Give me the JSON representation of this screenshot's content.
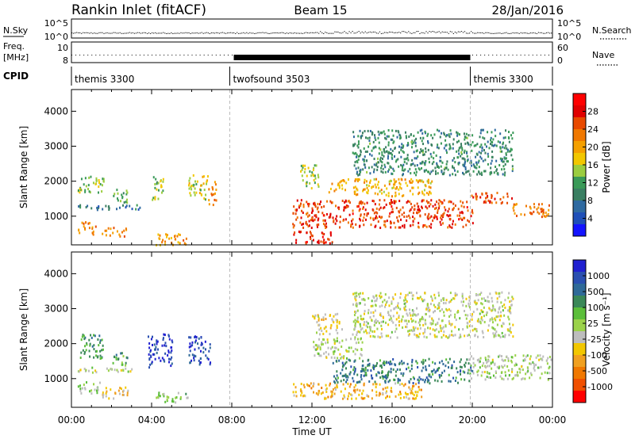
{
  "header": {
    "title": "Rankin Inlet (fitACF)",
    "beam": "Beam 15",
    "date": "28/Jan/2016"
  },
  "strip": {
    "nsky_label": "N.Sky",
    "nsearch_label": "N.Search",
    "nsky_ticks": [
      "10^5",
      "10^0"
    ],
    "nsearch_ticks": [
      "10^5",
      "10^0"
    ],
    "freq_label_1": "Freq.",
    "freq_label_2": "[MHz]",
    "freq_ticks": [
      "10",
      "8"
    ],
    "nave_label": "Nave",
    "nave_ticks": [
      "60",
      "0"
    ],
    "cpid_label": "CPID",
    "cpid_segments": [
      {
        "label": "themis 3300",
        "start_hour": 0,
        "end_hour": 7.9
      },
      {
        "label": "twofsound 3503",
        "start_hour": 7.9,
        "end_hour": 19.9
      },
      {
        "label": "themis 3300",
        "start_hour": 19.9,
        "end_hour": 24
      }
    ]
  },
  "axes": {
    "ylabel": "Slant Range [km]",
    "yticks": [
      1000,
      2000,
      3000,
      4000
    ],
    "ylim": [
      180,
      4620
    ],
    "xlabel": "Time UT",
    "xticks": [
      "00:00",
      "04:00",
      "08:00",
      "12:00",
      "16:00",
      "20:00",
      "00:00"
    ],
    "xlim_hours": [
      0,
      24
    ]
  },
  "colors": {
    "grey_scatter": "#bdbdbd",
    "gap_line": "#bbbbbb"
  },
  "chart_data": [
    {
      "type": "heatmap",
      "name": "power",
      "title": "Power [dB]",
      "xlabel": "Time UT",
      "ylabel": "Slant Range [km]",
      "colorbar_ticks": [
        "4",
        "8",
        "12",
        "16",
        "20",
        "24",
        "28"
      ],
      "colormap": [
        "#1414ff",
        "#1f4fb8",
        "#2f6aa0",
        "#3a7f62",
        "#3a9a58",
        "#9bcd40",
        "#f2c700",
        "#f5a000",
        "#f07800",
        "#e84a00",
        "#e00000",
        "#ff0000"
      ],
      "clusters": [
        {
          "t0": 0.3,
          "t1": 1.6,
          "r0": 1700,
          "r1": 2200,
          "value": 14
        },
        {
          "t0": 0.3,
          "t1": 3.5,
          "r0": 1200,
          "r1": 1350,
          "value": 8
        },
        {
          "t0": 0.3,
          "t1": 1.2,
          "r0": 500,
          "r1": 900,
          "value": 22
        },
        {
          "t0": 1.5,
          "t1": 2.7,
          "r0": 450,
          "r1": 700,
          "value": 21
        },
        {
          "t0": 2.0,
          "t1": 2.8,
          "r0": 1400,
          "r1": 1800,
          "value": 12
        },
        {
          "t0": 4.0,
          "t1": 4.6,
          "r0": 1500,
          "r1": 2200,
          "value": 14
        },
        {
          "t0": 4.2,
          "t1": 5.8,
          "r0": 200,
          "r1": 550,
          "value": 21
        },
        {
          "t0": 5.8,
          "t1": 6.8,
          "r0": 1500,
          "r1": 2200,
          "value": 16
        },
        {
          "t0": 6.8,
          "t1": 7.2,
          "r0": 1350,
          "r1": 2050,
          "value": 22
        },
        {
          "t0": 11.0,
          "t1": 20.0,
          "r0": 700,
          "r1": 1500,
          "value": 26
        },
        {
          "t0": 11.0,
          "t1": 13.0,
          "r0": 250,
          "r1": 600,
          "value": 27
        },
        {
          "t0": 11.4,
          "t1": 12.3,
          "r0": 1800,
          "r1": 2500,
          "value": 15
        },
        {
          "t0": 12.8,
          "t1": 18.0,
          "r0": 1600,
          "r1": 2100,
          "value": 19
        },
        {
          "t0": 19.8,
          "t1": 22.0,
          "r0": 1400,
          "r1": 1700,
          "value": 25
        },
        {
          "t0": 22.0,
          "t1": 23.9,
          "r0": 1000,
          "r1": 1400,
          "value": 23
        },
        {
          "t0": 14.0,
          "t1": 22.0,
          "r0": 2200,
          "r1": 3500,
          "value": 10
        }
      ]
    },
    {
      "type": "heatmap",
      "name": "velocity",
      "title": "Velocity [m s⁻¹]",
      "xlabel": "Time UT",
      "ylabel": "Slant Range [km]",
      "colorbar_ticks": [
        "1000",
        "500",
        "100",
        "25",
        "-25",
        "-100",
        "-500",
        "-1000"
      ],
      "colormap": [
        "#2020d0",
        "#2a4fb0",
        "#2f6a98",
        "#3a8858",
        "#5bbe3a",
        "#9bd24a",
        "#bdbdbd",
        "#f2c700",
        "#f0a020",
        "#f07800",
        "#f05000",
        "#ff0000"
      ],
      "clusters": [
        {
          "t0": 0.4,
          "t1": 1.6,
          "r0": 1600,
          "r1": 2300,
          "value": 500
        },
        {
          "t0": 0.3,
          "t1": 3.5,
          "r0": 1200,
          "r1": 1350,
          "value": 0
        },
        {
          "t0": 0.3,
          "t1": 1.4,
          "r0": 600,
          "r1": 950,
          "value": 100
        },
        {
          "t0": 1.5,
          "t1": 2.8,
          "r0": 450,
          "r1": 800,
          "value": -300
        },
        {
          "t0": 2.0,
          "t1": 2.8,
          "r0": 1400,
          "r1": 1800,
          "value": 400
        },
        {
          "t0": 3.8,
          "t1": 5.0,
          "r0": 1350,
          "r1": 2300,
          "value": 1000
        },
        {
          "t0": 4.2,
          "t1": 5.8,
          "r0": 350,
          "r1": 650,
          "value": 150
        },
        {
          "t0": 5.8,
          "t1": 6.9,
          "r0": 1400,
          "r1": 2250,
          "value": 900
        },
        {
          "t0": 11.0,
          "t1": 17.5,
          "r0": 450,
          "r1": 900,
          "value": -400
        },
        {
          "t0": 13.0,
          "t1": 20.0,
          "r0": 900,
          "r1": 1600,
          "value": 600
        },
        {
          "t0": 12.0,
          "t1": 14.5,
          "r0": 1600,
          "r1": 2200,
          "value": 0
        },
        {
          "t0": 12.0,
          "t1": 13.5,
          "r0": 2300,
          "r1": 2900,
          "value": -200
        },
        {
          "t0": 19.8,
          "t1": 23.9,
          "r0": 1000,
          "r1": 1700,
          "value": 50
        },
        {
          "t0": 14.0,
          "t1": 22.0,
          "r0": 2200,
          "r1": 3500,
          "value": -50
        }
      ]
    }
  ]
}
